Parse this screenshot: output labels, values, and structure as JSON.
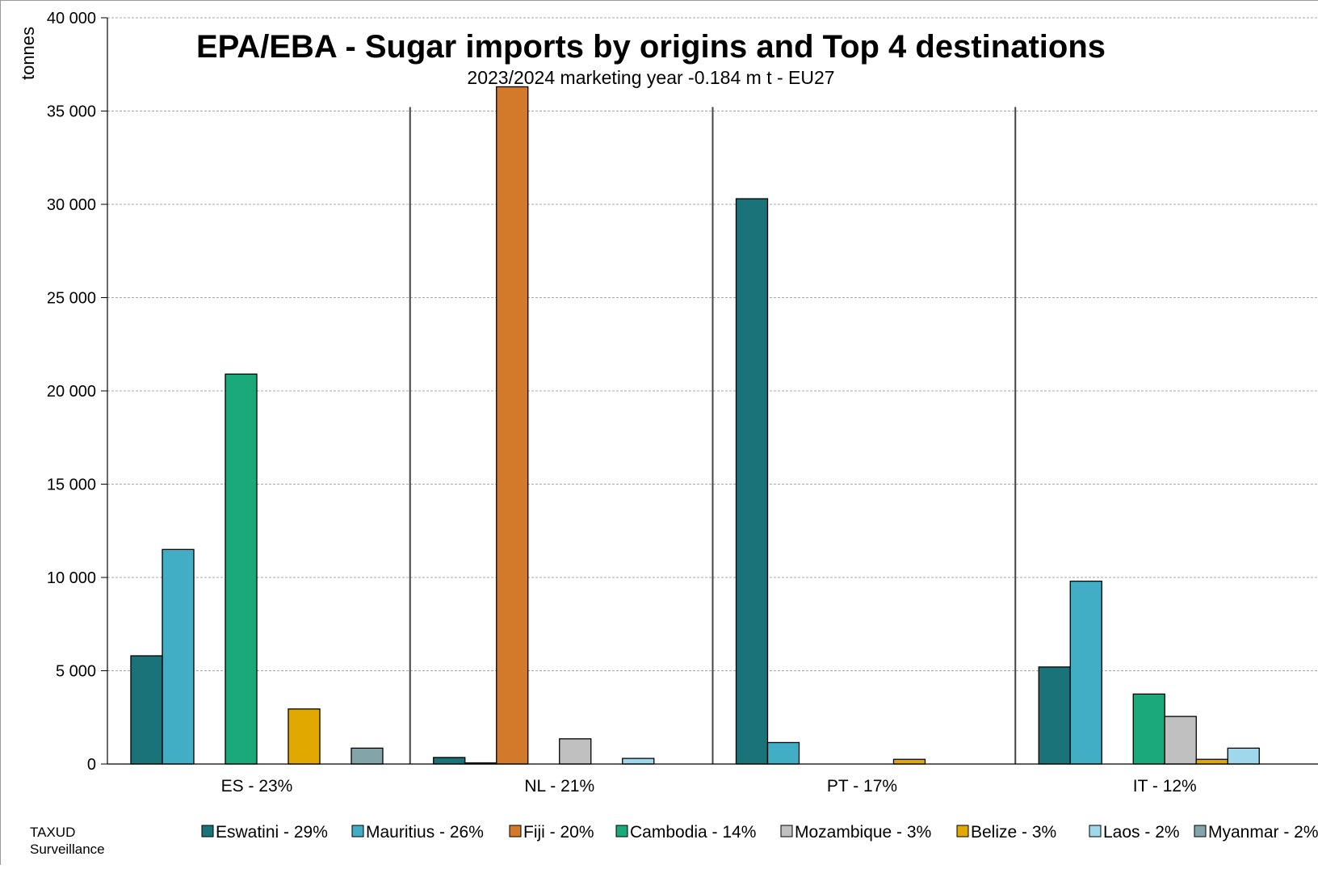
{
  "chart_data": {
    "type": "bar",
    "title": "EPA/EBA - Sugar imports by origins and Top 4 destinations",
    "subtitle": "2023/2024 marketing  year -0.184 m t - EU27",
    "ylabel": "tonnes",
    "xlabel": "",
    "ylim": [
      0,
      40000
    ],
    "yticks": [
      {
        "value": 0,
        "label": "0"
      },
      {
        "value": 5000,
        "label": "5 000"
      },
      {
        "value": 10000,
        "label": "10 000"
      },
      {
        "value": 15000,
        "label": "15 000"
      },
      {
        "value": 20000,
        "label": "20 000"
      },
      {
        "value": 25000,
        "label": "25 000"
      },
      {
        "value": 30000,
        "label": "30 000"
      },
      {
        "value": 35000,
        "label": "35 000"
      },
      {
        "value": 40000,
        "label": "40 000"
      }
    ],
    "grid": true,
    "legend_position": "bottom",
    "categories": [
      "ES - 23%",
      "NL - 21%",
      "PT - 17%",
      "IT - 12%"
    ],
    "series": [
      {
        "name": "Eswatini - 29%",
        "color": "#1b737a",
        "values": [
          5800,
          350,
          30300,
          5200
        ]
      },
      {
        "name": "Mauritius - 26%",
        "color": "#41aec6",
        "values": [
          11500,
          60,
          1150,
          9800
        ]
      },
      {
        "name": "Fiji - 20%",
        "color": "#d27a2a",
        "values": [
          0,
          36300,
          0,
          0
        ]
      },
      {
        "name": "Cambodia - 14%",
        "color": "#1aa97a",
        "values": [
          20900,
          0,
          0,
          3750
        ]
      },
      {
        "name": "Mozambique - 3%",
        "color": "#c0c0c0",
        "values": [
          0,
          1350,
          0,
          2550
        ]
      },
      {
        "name": "Belize - 3%",
        "color": "#e1a800",
        "values": [
          2950,
          0,
          250,
          250
        ]
      },
      {
        "name": "Laos - 2%",
        "color": "#9fd8ec",
        "values": [
          0,
          300,
          0,
          850
        ]
      },
      {
        "name": "Myanmar - 2%",
        "color": "#83a5a9",
        "values": [
          850,
          0,
          0,
          0
        ]
      }
    ]
  },
  "footer": {
    "source_line1": "TAXUD",
    "source_line2": "Surveillance"
  }
}
